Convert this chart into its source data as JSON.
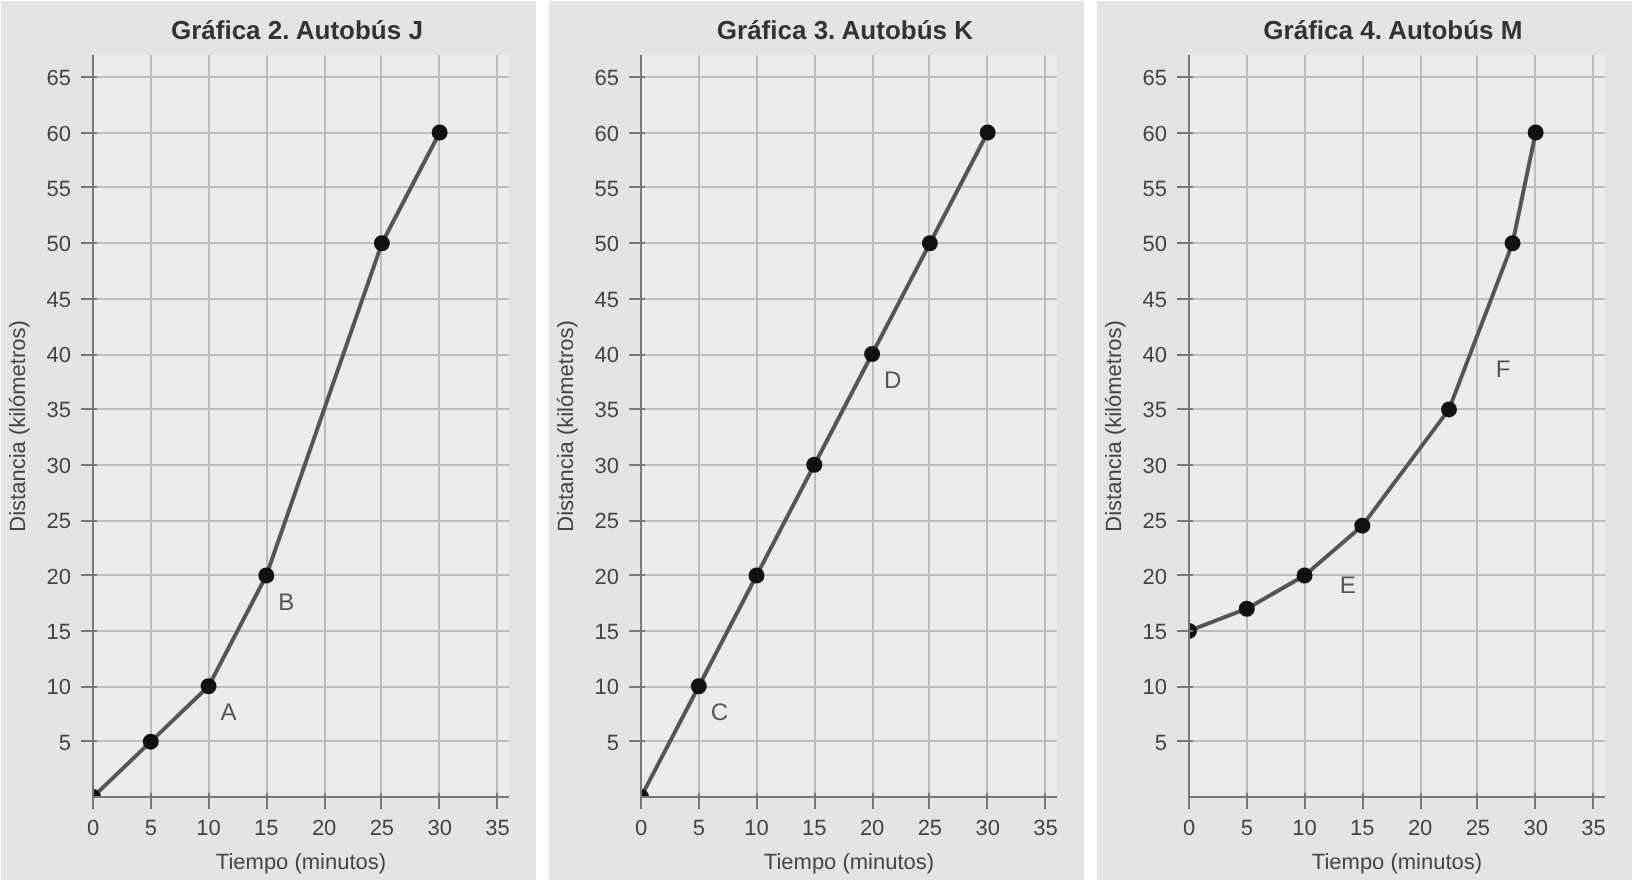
{
  "chart_data": [
    {
      "type": "line",
      "title": "Gráfica 2.  Autobús J",
      "xlabel": "Tiempo (minutos)",
      "ylabel": "Distancia (kilómetros)",
      "x": [
        0,
        5,
        10,
        15,
        25,
        30
      ],
      "values": [
        0,
        5,
        10,
        20,
        50,
        60
      ],
      "color": "#555555",
      "marker": "circle",
      "xlim": [
        0,
        36
      ],
      "ylim": [
        0,
        67
      ],
      "xticks": [
        0,
        5,
        10,
        15,
        20,
        25,
        30,
        35
      ],
      "yticks": [
        5,
        10,
        15,
        20,
        25,
        30,
        35,
        40,
        45,
        50,
        55,
        60,
        65
      ],
      "grid": true,
      "annotations": [
        {
          "text": "A",
          "x": 10,
          "y": 10
        },
        {
          "text": "B",
          "x": 15,
          "y": 20
        }
      ]
    },
    {
      "type": "line",
      "title": "Gráfica 3.  Autobús K",
      "xlabel": "Tiempo (minutos)",
      "ylabel": "Distancia (kilómetros)",
      "x": [
        0,
        5,
        10,
        15,
        20,
        25,
        30
      ],
      "values": [
        0,
        10,
        20,
        30,
        40,
        50,
        60
      ],
      "color": "#555555",
      "marker": "circle",
      "xlim": [
        0,
        36
      ],
      "ylim": [
        0,
        67
      ],
      "xticks": [
        0,
        5,
        10,
        15,
        20,
        25,
        30,
        35
      ],
      "yticks": [
        5,
        10,
        15,
        20,
        25,
        30,
        35,
        40,
        45,
        50,
        55,
        60,
        65
      ],
      "grid": true,
      "annotations": [
        {
          "text": "C",
          "x": 5,
          "y": 10
        },
        {
          "text": "D",
          "x": 20,
          "y": 40
        }
      ]
    },
    {
      "type": "line",
      "title": "Gráfica 4.  Autobús M",
      "xlabel": "Tiempo (minutos)",
      "ylabel": "Distancia (kilómetros)",
      "x": [
        0,
        5,
        10,
        15,
        22.5,
        28,
        30
      ],
      "values": [
        15,
        17,
        20,
        24.5,
        35,
        50,
        60
      ],
      "color": "#555555",
      "marker": "circle",
      "xlim": [
        0,
        36
      ],
      "ylim": [
        0,
        67
      ],
      "xticks": [
        0,
        5,
        10,
        15,
        20,
        25,
        30,
        35
      ],
      "yticks": [
        5,
        10,
        15,
        20,
        25,
        30,
        35,
        40,
        45,
        50,
        55,
        60,
        65
      ],
      "grid": true,
      "annotations": [
        {
          "text": "E",
          "x": 12,
          "y": 21.5
        },
        {
          "text": "F",
          "x": 25.5,
          "y": 41
        }
      ]
    }
  ]
}
